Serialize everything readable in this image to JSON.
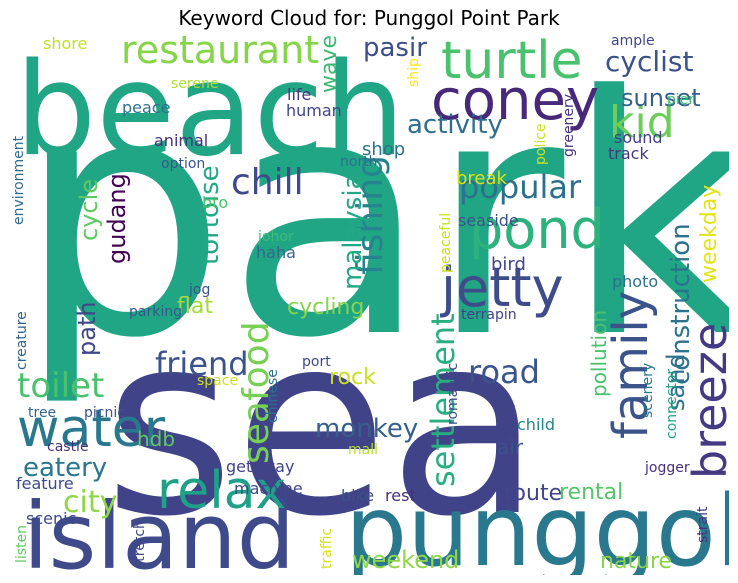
{
  "title": "Keyword Cloud for: Punggol Point Park",
  "words": [
    {
      "text": "park",
      "color": "#21a685",
      "rotate": 0
    },
    {
      "text": "sea",
      "color": "#404387",
      "rotate": 0
    },
    {
      "text": "beach",
      "color": "#21a685",
      "rotate": 0
    },
    {
      "text": "punggol",
      "color": "#2a788e",
      "rotate": 0
    },
    {
      "text": "island",
      "color": "#3f4a8a",
      "rotate": 0
    },
    {
      "text": "turtle",
      "color": "#4ac16d",
      "rotate": 0
    },
    {
      "text": "restaurant",
      "color": "#86d549",
      "rotate": 0
    },
    {
      "text": "coney",
      "color": "#482878",
      "rotate": 0
    },
    {
      "text": "kid",
      "color": "#6ccd5a",
      "rotate": 0
    },
    {
      "text": "pond",
      "color": "#2db27d",
      "rotate": 0
    },
    {
      "text": "jetty",
      "color": "#3e4c8a",
      "rotate": 0
    },
    {
      "text": "family",
      "color": "#3b528b",
      "rotate": 90
    },
    {
      "text": "breeze",
      "color": "#443983",
      "rotate": 90
    },
    {
      "text": "water",
      "color": "#2a788e",
      "rotate": 0
    },
    {
      "text": "relax",
      "color": "#1fa088",
      "rotate": 0
    },
    {
      "text": "seafood",
      "color": "#75d054",
      "rotate": 90
    },
    {
      "text": "fishing",
      "color": "#26828e",
      "rotate": 90
    },
    {
      "text": "chill",
      "color": "#3e4a89",
      "rotate": 0
    },
    {
      "text": "popular",
      "color": "#2d708e",
      "rotate": 0
    },
    {
      "text": "tortoise",
      "color": "#22a884",
      "rotate": 90
    },
    {
      "text": "settlement",
      "color": "#29af7f",
      "rotate": 90
    },
    {
      "text": "friend",
      "color": "#3b528b",
      "rotate": 0
    },
    {
      "text": "road",
      "color": "#39558c",
      "rotate": 0
    },
    {
      "text": "monkey",
      "color": "#35608d",
      "rotate": 0
    },
    {
      "text": "toilet",
      "color": "#4ac16d",
      "rotate": 0
    },
    {
      "text": "cyclist",
      "color": "#3b528b",
      "rotate": 0
    },
    {
      "text": "sunset",
      "color": "#355f8d",
      "rotate": 0
    },
    {
      "text": "activity",
      "color": "#2e6e8e",
      "rotate": 0
    },
    {
      "text": "pasir",
      "color": "#3d4d8a",
      "rotate": 0
    },
    {
      "text": "gudang",
      "color": "#440154",
      "rotate": 90
    },
    {
      "text": "cycle",
      "color": "#5ec962",
      "rotate": 90
    },
    {
      "text": "malaysia",
      "color": "#22a884",
      "rotate": 90
    },
    {
      "text": "construction",
      "color": "#2c728e",
      "rotate": 90
    },
    {
      "text": "city",
      "color": "#8fd744",
      "rotate": 0
    },
    {
      "text": "eatery",
      "color": "#2a768e",
      "rotate": 0
    },
    {
      "text": "sand",
      "color": "#2c718e",
      "rotate": 90
    },
    {
      "text": "weekday",
      "color": "#e2e418",
      "rotate": 90
    },
    {
      "text": "wave",
      "color": "#3aba76",
      "rotate": 90
    },
    {
      "text": "path",
      "color": "#404688",
      "rotate": 90
    },
    {
      "text": "rock",
      "color": "#c8e020",
      "rotate": 0
    },
    {
      "text": "weekend",
      "color": "#8fd744",
      "rotate": 0
    },
    {
      "text": "nature",
      "color": "#86d549",
      "rotate": 0
    },
    {
      "text": "rental",
      "color": "#54c568",
      "rotate": 0
    },
    {
      "text": "route",
      "color": "#404688",
      "rotate": 0
    },
    {
      "text": "hdb",
      "color": "#5ec962",
      "rotate": 0
    },
    {
      "text": "flat",
      "color": "#a5db36",
      "rotate": 0
    },
    {
      "text": "air",
      "color": "#3b528b",
      "rotate": 0
    },
    {
      "text": "shop",
      "color": "#2d708e",
      "rotate": 0
    },
    {
      "text": "break",
      "color": "#d8e219",
      "rotate": 0
    },
    {
      "text": "bird",
      "color": "#414487",
      "rotate": 0
    },
    {
      "text": "cycling",
      "color": "#86d549",
      "rotate": 0
    },
    {
      "text": "pollution",
      "color": "#4ac16d",
      "rotate": 90
    },
    {
      "text": "shore",
      "color": "#c2df23",
      "rotate": 0
    },
    {
      "text": "ample",
      "color": "#3f4788",
      "rotate": 0
    },
    {
      "text": "pier",
      "color": "#3aba76",
      "rotate": 0
    },
    {
      "text": "life",
      "color": "#453781",
      "rotate": 0
    },
    {
      "text": "human",
      "color": "#404688",
      "rotate": 0
    },
    {
      "text": "serene",
      "color": "#b0dd2f",
      "rotate": 0
    },
    {
      "text": "peace",
      "color": "#2d708e",
      "rotate": 0
    },
    {
      "text": "ship",
      "color": "#fde725",
      "rotate": 90
    },
    {
      "text": "animal",
      "color": "#46307e",
      "rotate": 0
    },
    {
      "text": "option",
      "color": "#39568c",
      "rotate": 0
    },
    {
      "text": "north",
      "color": "#2e6e8e",
      "rotate": 0
    },
    {
      "text": "police",
      "color": "#cde11d",
      "rotate": 90
    },
    {
      "text": "greenery",
      "color": "#46327e",
      "rotate": 90
    },
    {
      "text": "sound",
      "color": "#433e85",
      "rotate": 0
    },
    {
      "text": "track",
      "color": "#453882",
      "rotate": 0
    },
    {
      "text": "environment",
      "color": "#2f6c8e",
      "rotate": 90
    },
    {
      "text": "bto",
      "color": "#4ac16d",
      "rotate": 0
    },
    {
      "text": "seaside",
      "color": "#3b528b",
      "rotate": 0
    },
    {
      "text": "peaceful",
      "color": "#c8e020",
      "rotate": 90
    },
    {
      "text": "johor",
      "color": "#3dbc74",
      "rotate": 0
    },
    {
      "text": "haha",
      "color": "#31678e",
      "rotate": 0
    },
    {
      "text": "jog",
      "color": "#3b528b",
      "rotate": 0
    },
    {
      "text": "photo",
      "color": "#2c718e",
      "rotate": 0
    },
    {
      "text": "creature",
      "color": "#34618d",
      "rotate": 90
    },
    {
      "text": "parking",
      "color": "#39568c",
      "rotate": 0
    },
    {
      "text": "terrapin",
      "color": "#424086",
      "rotate": 0
    },
    {
      "text": "port",
      "color": "#3e4989",
      "rotate": 0
    },
    {
      "text": "space",
      "color": "#cde11d",
      "rotate": 0
    },
    {
      "text": "chinese",
      "color": "#2e6f8e",
      "rotate": 90
    },
    {
      "text": "romantic",
      "color": "#3f4889",
      "rotate": 90
    },
    {
      "text": "scenery",
      "color": "#29798e",
      "rotate": 90
    },
    {
      "text": "connector",
      "color": "#20a386",
      "rotate": 90
    },
    {
      "text": "tree",
      "color": "#31668e",
      "rotate": 0
    },
    {
      "text": "picnic",
      "color": "#3b528b",
      "rotate": 0
    },
    {
      "text": "child",
      "color": "#25838e",
      "rotate": 0
    },
    {
      "text": "castle",
      "color": "#46337f",
      "rotate": 0
    },
    {
      "text": "mall",
      "color": "#b5de2b",
      "rotate": 0
    },
    {
      "text": "getaway",
      "color": "#414487",
      "rotate": 0
    },
    {
      "text": "jogger",
      "color": "#46307e",
      "rotate": 0
    },
    {
      "text": "feature",
      "color": "#3e4989",
      "rotate": 0
    },
    {
      "text": "machine",
      "color": "#3f4889",
      "rotate": 0
    },
    {
      "text": "bike",
      "color": "#3b528b",
      "rotate": 0
    },
    {
      "text": "rest",
      "color": "#46307e",
      "rotate": 0
    },
    {
      "text": "scenic",
      "color": "#3e4a89",
      "rotate": 0
    },
    {
      "text": "listen",
      "color": "#5ec962",
      "rotate": 90
    },
    {
      "text": "stretch",
      "color": "#3f4788",
      "rotate": 90
    },
    {
      "text": "traffic",
      "color": "#d8e219",
      "rotate": 90
    },
    {
      "text": "strait",
      "color": "#46337f",
      "rotate": 90
    }
  ]
}
